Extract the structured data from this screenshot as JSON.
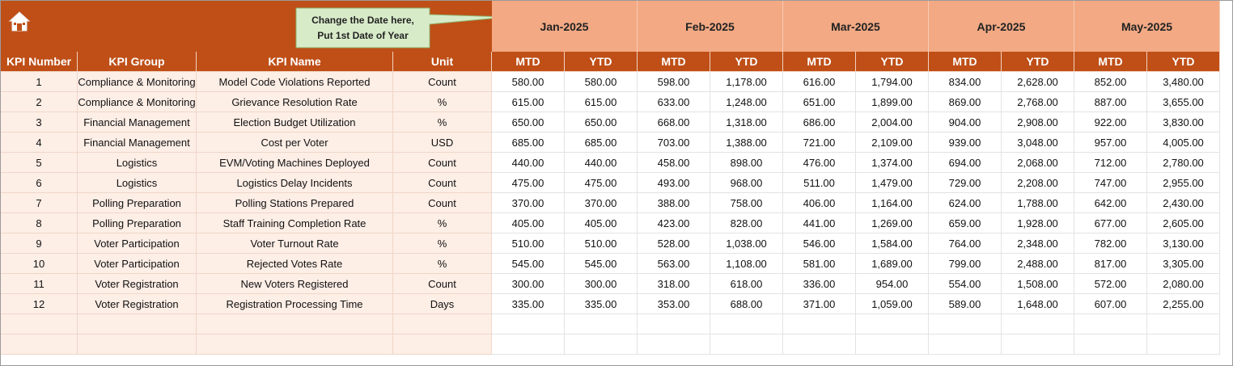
{
  "header": {
    "callout": [
      "Change the Date here,",
      "Put 1st Date of Year"
    ]
  },
  "table": {
    "columns": [
      "KPI Number",
      "KPI Group",
      "KPI Name",
      "Unit"
    ],
    "months": [
      {
        "label": "Jan-2025",
        "sub": [
          "MTD",
          "YTD"
        ]
      },
      {
        "label": "Feb-2025",
        "sub": [
          "MTD",
          "YTD"
        ]
      },
      {
        "label": "Mar-2025",
        "sub": [
          "MTD",
          "YTD"
        ]
      },
      {
        "label": "Apr-2025",
        "sub": [
          "MTD",
          "YTD"
        ]
      },
      {
        "label": "May-2025",
        "sub": [
          "MTD",
          "YTD"
        ]
      }
    ],
    "rows": [
      [
        "1",
        "Compliance & Monitoring",
        "Model Code Violations Reported",
        "Count",
        "580.00",
        "580.00",
        "598.00",
        "1,178.00",
        "616.00",
        "1,794.00",
        "834.00",
        "2,628.00",
        "852.00",
        "3,480.00"
      ],
      [
        "2",
        "Compliance & Monitoring",
        "Grievance Resolution Rate",
        "%",
        "615.00",
        "615.00",
        "633.00",
        "1,248.00",
        "651.00",
        "1,899.00",
        "869.00",
        "2,768.00",
        "887.00",
        "3,655.00"
      ],
      [
        "3",
        "Financial Management",
        "Election Budget Utilization",
        "%",
        "650.00",
        "650.00",
        "668.00",
        "1,318.00",
        "686.00",
        "2,004.00",
        "904.00",
        "2,908.00",
        "922.00",
        "3,830.00"
      ],
      [
        "4",
        "Financial Management",
        "Cost per Voter",
        "USD",
        "685.00",
        "685.00",
        "703.00",
        "1,388.00",
        "721.00",
        "2,109.00",
        "939.00",
        "3,048.00",
        "957.00",
        "4,005.00"
      ],
      [
        "5",
        "Logistics",
        "EVM/Voting Machines Deployed",
        "Count",
        "440.00",
        "440.00",
        "458.00",
        "898.00",
        "476.00",
        "1,374.00",
        "694.00",
        "2,068.00",
        "712.00",
        "2,780.00"
      ],
      [
        "6",
        "Logistics",
        "Logistics Delay Incidents",
        "Count",
        "475.00",
        "475.00",
        "493.00",
        "968.00",
        "511.00",
        "1,479.00",
        "729.00",
        "2,208.00",
        "747.00",
        "2,955.00"
      ],
      [
        "7",
        "Polling Preparation",
        "Polling Stations Prepared",
        "Count",
        "370.00",
        "370.00",
        "388.00",
        "758.00",
        "406.00",
        "1,164.00",
        "624.00",
        "1,788.00",
        "642.00",
        "2,430.00"
      ],
      [
        "8",
        "Polling Preparation",
        "Staff Training Completion Rate",
        "%",
        "405.00",
        "405.00",
        "423.00",
        "828.00",
        "441.00",
        "1,269.00",
        "659.00",
        "1,928.00",
        "677.00",
        "2,605.00"
      ],
      [
        "9",
        "Voter Participation",
        "Voter Turnout Rate",
        "%",
        "510.00",
        "510.00",
        "528.00",
        "1,038.00",
        "546.00",
        "1,584.00",
        "764.00",
        "2,348.00",
        "782.00",
        "3,130.00"
      ],
      [
        "10",
        "Voter Participation",
        "Rejected Votes Rate",
        "%",
        "545.00",
        "545.00",
        "563.00",
        "1,108.00",
        "581.00",
        "1,689.00",
        "799.00",
        "2,488.00",
        "817.00",
        "3,305.00"
      ],
      [
        "11",
        "Voter Registration",
        "New Voters Registered",
        "Count",
        "300.00",
        "300.00",
        "318.00",
        "618.00",
        "336.00",
        "954.00",
        "554.00",
        "1,508.00",
        "572.00",
        "2,080.00"
      ],
      [
        "12",
        "Voter Registration",
        "Registration Processing Time",
        "Days",
        "335.00",
        "335.00",
        "353.00",
        "688.00",
        "371.00",
        "1,059.00",
        "589.00",
        "1,648.00",
        "607.00",
        "2,255.00"
      ]
    ]
  }
}
